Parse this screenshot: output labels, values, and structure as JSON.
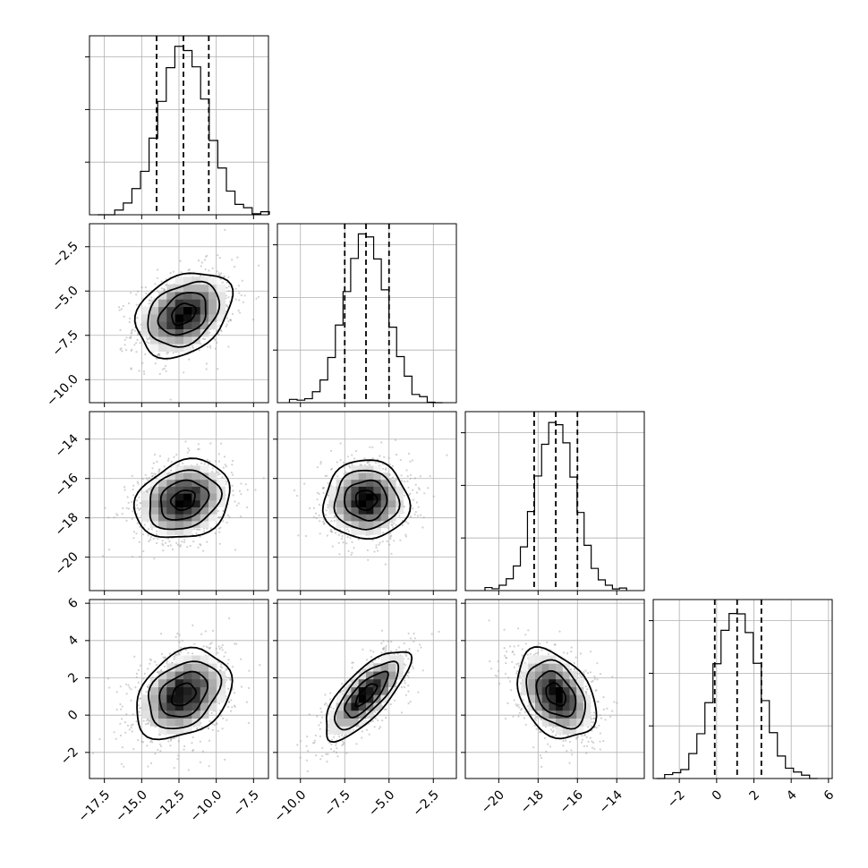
{
  "chart_data": {
    "type": "corner",
    "variables": [
      {
        "mean": -12.2,
        "sd": 1.6,
        "quantiles": [
          -14.0,
          -12.2,
          -10.5
        ],
        "range": [
          -18.5,
          -6.5
        ],
        "ticks": [
          -17.5,
          -15.0,
          -12.5,
          -10.0,
          -7.5
        ],
        "tick_labels": [
          "−17.5",
          "−15.0",
          "−12.5",
          "−10.0",
          "−7.5"
        ]
      },
      {
        "mean": -6.3,
        "sd": 1.2,
        "quantiles": [
          -7.5,
          -6.3,
          -5.0
        ],
        "range": [
          -11.3,
          -1.2
        ],
        "ticks": [
          -10.0,
          -7.5,
          -5.0,
          -2.5
        ],
        "tick_labels": [
          "−10.0",
          "−7.5",
          "−5.0",
          "−2.5"
        ]
      },
      {
        "mean": -17.1,
        "sd": 1.0,
        "quantiles": [
          -18.2,
          -17.1,
          -16.0
        ],
        "range": [
          -21.7,
          -12.6
        ],
        "ticks": [
          -20,
          -18,
          -16,
          -14
        ],
        "tick_labels": [
          "−20",
          "−18",
          "−16",
          "−14"
        ]
      },
      {
        "mean": 1.1,
        "sd": 1.2,
        "quantiles": [
          -0.1,
          1.1,
          2.4
        ],
        "range": [
          -3.4,
          6.2
        ],
        "ticks": [
          -2,
          0,
          2,
          4,
          6
        ],
        "tick_labels": [
          "−2",
          "0",
          "2",
          "4",
          "6"
        ]
      }
    ],
    "correlations": {
      "1-0": 0.3,
      "2-0": 0.2,
      "2-1": 0.0,
      "3-0": 0.3,
      "3-1": 0.75,
      "3-2": -0.35
    },
    "hist_peak_fraction": 1.0,
    "colors": {
      "line": "#000000",
      "points": "#9a9a9a",
      "grid": "#b0b0b0",
      "density_min": "#f5f5f5",
      "density_max": "#000000"
    }
  }
}
